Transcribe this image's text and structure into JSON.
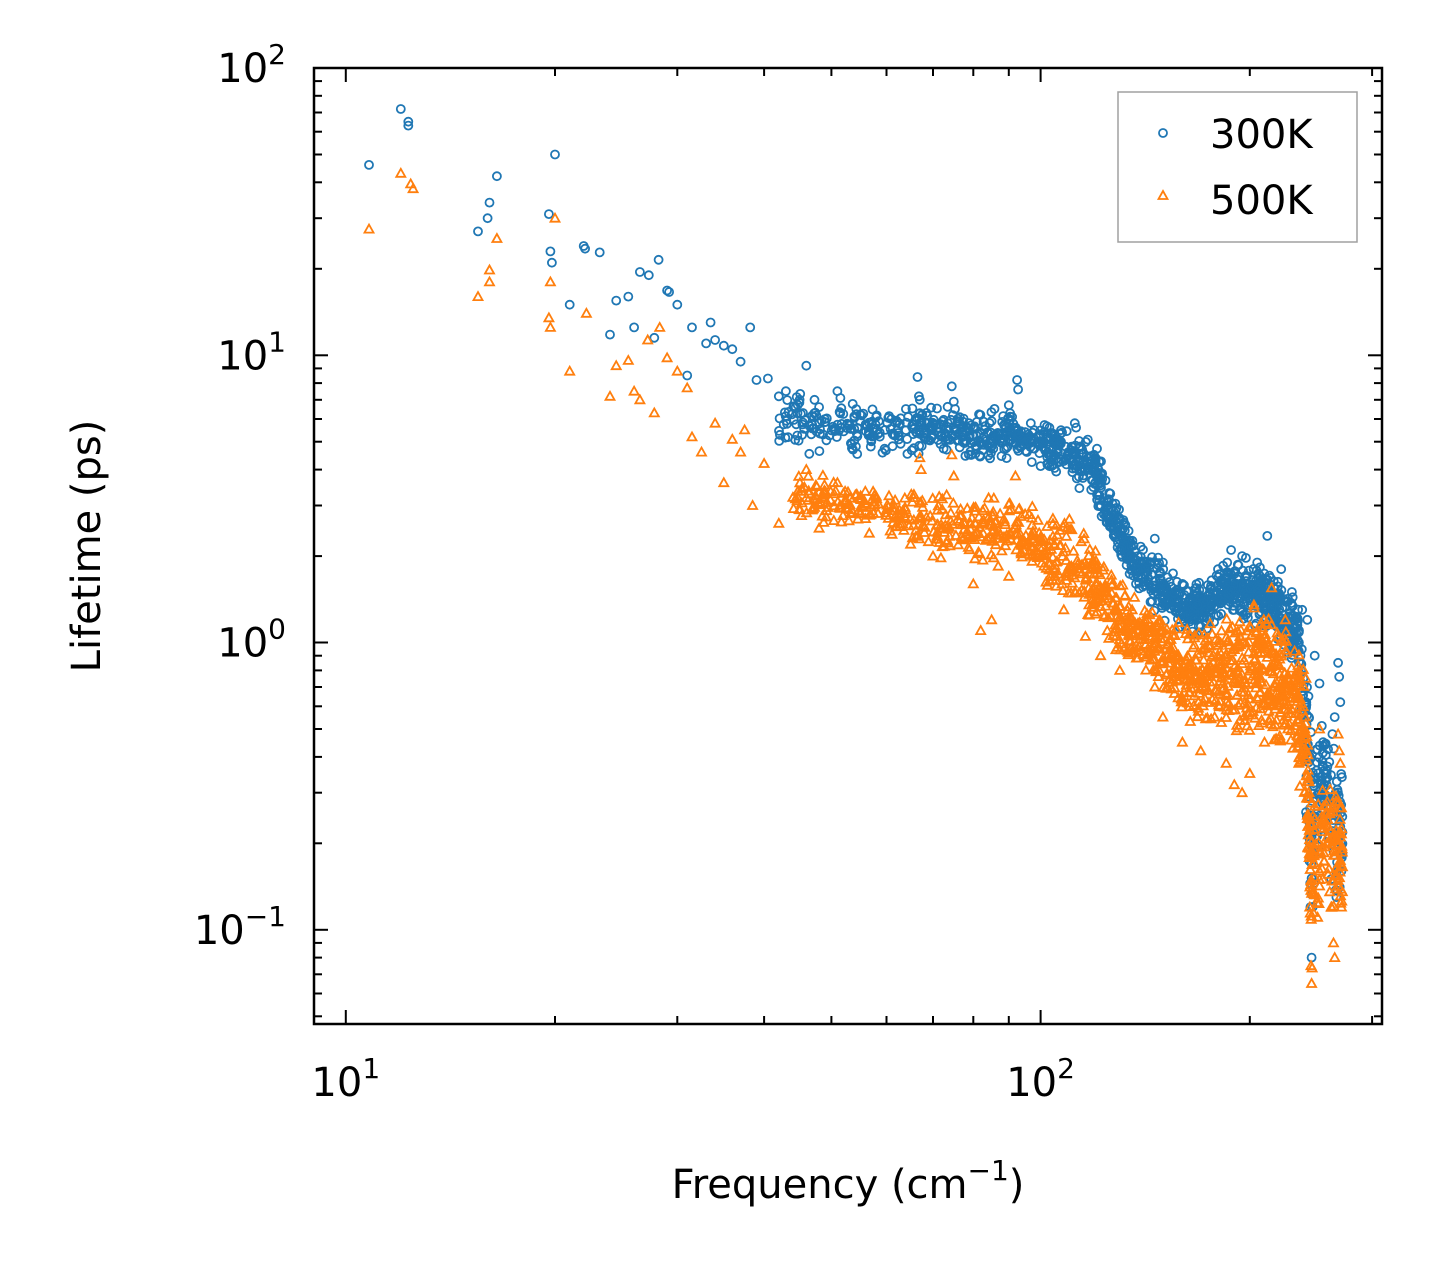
{
  "chart_data": {
    "type": "scatter",
    "title": "",
    "xlabel": "Frequency (cm⁻¹)",
    "xlabel_main": "Frequency (cm",
    "xlabel_sup": "−1",
    "xlabel_close": ")",
    "ylabel": "Lifetime (ps)",
    "xscale": "log",
    "yscale": "log",
    "xlim": [
      9,
      310
    ],
    "ylim": [
      0.047,
      100
    ],
    "x_major_ticks": [
      {
        "value": 10,
        "base": "10",
        "exp": "1"
      },
      {
        "value": 100,
        "base": "10",
        "exp": "2"
      }
    ],
    "y_major_ticks": [
      {
        "value": 0.1,
        "base": "10",
        "exp": "−1"
      },
      {
        "value": 1,
        "base": "10",
        "exp": "0"
      },
      {
        "value": 10,
        "base": "10",
        "exp": "1"
      },
      {
        "value": 100,
        "base": "10",
        "exp": "2"
      }
    ],
    "legend_location": "top-right",
    "colors": {
      "300K": "#1f77b4",
      "500K": "#ff7f0e",
      "axes": "#000000",
      "legend_frame": "#a0a0a0"
    },
    "series": [
      {
        "name": "300K",
        "marker": "circle",
        "color": "#1f77b4",
        "points": [
          [
            10.8,
            46
          ],
          [
            12.0,
            72
          ],
          [
            12.3,
            65
          ],
          [
            12.3,
            63
          ],
          [
            15.5,
            27
          ],
          [
            16.0,
            30
          ],
          [
            16.1,
            34
          ],
          [
            16.5,
            42
          ],
          [
            19.6,
            31
          ],
          [
            19.7,
            23
          ],
          [
            19.8,
            21
          ],
          [
            20.0,
            50
          ],
          [
            21.0,
            15
          ],
          [
            22.0,
            24
          ],
          [
            22.1,
            23.5
          ],
          [
            23.2,
            22.8
          ],
          [
            24.0,
            11.8
          ],
          [
            24.5,
            15.5
          ],
          [
            25.5,
            16
          ],
          [
            26.0,
            12.5
          ],
          [
            26.5,
            19.5
          ],
          [
            27.3,
            19
          ],
          [
            27.8,
            11.5
          ],
          [
            28.2,
            21.5
          ],
          [
            29.0,
            16.8
          ],
          [
            29.2,
            16.6
          ],
          [
            30.0,
            15
          ],
          [
            31.0,
            8.5
          ],
          [
            31.5,
            12.5
          ],
          [
            33.0,
            11
          ],
          [
            33.5,
            13
          ],
          [
            34.0,
            11.3
          ],
          [
            35.0,
            10.8
          ],
          [
            36.0,
            10.5
          ],
          [
            37.0,
            9.5
          ],
          [
            38.2,
            12.5
          ],
          [
            39.0,
            8.2
          ],
          [
            40.5,
            8.3
          ],
          [
            42.0,
            7.2
          ],
          [
            43.0,
            7.5
          ],
          [
            45.0,
            7.0
          ],
          [
            46.0,
            9.2
          ],
          [
            48.0,
            6.6
          ],
          [
            51.0,
            7.5
          ],
          [
            51.5,
            7.1
          ],
          [
            55.0,
            5.9
          ],
          [
            58.0,
            6.1
          ],
          [
            61.0,
            6.0
          ],
          [
            64.0,
            6.5
          ],
          [
            66.5,
            8.4
          ],
          [
            66.8,
            7.2
          ],
          [
            67.0,
            7.0
          ],
          [
            70.0,
            5.6
          ],
          [
            74.5,
            7.8
          ],
          [
            75.0,
            6.9
          ],
          [
            75.3,
            6.5
          ],
          [
            80.0,
            5.6
          ],
          [
            85.0,
            5.9
          ],
          [
            90.0,
            6.7
          ],
          [
            91.0,
            6.1
          ],
          [
            92.5,
            8.2
          ],
          [
            92.8,
            7.6
          ],
          [
            95.0,
            5.4
          ],
          [
            100.0,
            5.3
          ],
          [
            103.0,
            5.1
          ],
          [
            107.0,
            5.0
          ],
          [
            112.0,
            5.8
          ],
          [
            112.5,
            5.6
          ],
          [
            120.0,
            4.3
          ],
          [
            126.0,
            3.3
          ],
          [
            130.0,
            2.1
          ],
          [
            138.0,
            1.8
          ],
          [
            146.0,
            2.3
          ],
          [
            150.0,
            1.9
          ],
          [
            160.0,
            1.6
          ],
          [
            170.0,
            1.45
          ],
          [
            180.0,
            1.8
          ],
          [
            188.0,
            2.1
          ],
          [
            195.0,
            2.0
          ],
          [
            205.0,
            1.9
          ],
          [
            212.0,
            2.35
          ],
          [
            222.0,
            1.8
          ],
          [
            230.0,
            1.5
          ],
          [
            238.0,
            1.3
          ],
          [
            242.0,
            1.2
          ],
          [
            243.0,
            0.65
          ],
          [
            244.0,
            0.2
          ],
          [
            244.5,
            0.12
          ],
          [
            245.5,
            0.08
          ],
          [
            248.0,
            0.9
          ],
          [
            252.0,
            0.72
          ],
          [
            255.0,
            0.45
          ],
          [
            258.0,
            0.35
          ],
          [
            260.0,
            0.21
          ],
          [
            262.0,
            0.15
          ],
          [
            263.0,
            0.48
          ],
          [
            265.0,
            0.55
          ],
          [
            266.5,
            0.13
          ],
          [
            268.0,
            0.85
          ],
          [
            269.0,
            0.76
          ],
          [
            270.0,
            0.62
          ],
          [
            270.5,
            0.2
          ],
          [
            271.0,
            0.16
          ]
        ],
        "bands": [
          [
            42,
            4.6,
            7.6,
            60
          ],
          [
            50,
            4.3,
            7.2,
            70
          ],
          [
            60,
            4.3,
            7.0,
            70
          ],
          [
            70,
            4.5,
            6.8,
            70
          ],
          [
            80,
            4.2,
            6.4,
            70
          ],
          [
            90,
            4.3,
            6.8,
            70
          ],
          [
            100,
            4.0,
            6.0,
            70
          ],
          [
            110,
            3.7,
            5.7,
            70
          ],
          [
            120,
            3.0,
            4.9,
            70
          ],
          [
            128,
            2.0,
            3.4,
            60
          ],
          [
            135,
            1.6,
            2.4,
            60
          ],
          [
            145,
            1.25,
            2.1,
            60
          ],
          [
            155,
            1.15,
            1.8,
            60
          ],
          [
            165,
            1.05,
            1.65,
            60
          ],
          [
            175,
            1.1,
            1.7,
            60
          ],
          [
            185,
            1.2,
            2.0,
            60
          ],
          [
            195,
            1.2,
            2.0,
            60
          ],
          [
            205,
            1.1,
            1.95,
            60
          ],
          [
            215,
            1.0,
            1.8,
            60
          ],
          [
            225,
            0.9,
            1.6,
            60
          ],
          [
            235,
            0.8,
            1.4,
            60
          ],
          [
            246,
            0.09,
            0.6,
            50
          ],
          [
            256,
            0.25,
            0.5,
            30
          ],
          [
            265,
            0.12,
            0.5,
            40
          ],
          [
            272,
            0.12,
            0.45,
            30
          ]
        ]
      },
      {
        "name": "500K",
        "marker": "triangle",
        "color": "#ff7f0e",
        "points": [
          [
            10.8,
            27.5
          ],
          [
            12.0,
            43
          ],
          [
            12.4,
            39.5
          ],
          [
            12.5,
            38
          ],
          [
            15.5,
            16
          ],
          [
            16.1,
            18
          ],
          [
            16.1,
            19.8
          ],
          [
            16.5,
            25.5
          ],
          [
            19.6,
            13.5
          ],
          [
            19.7,
            12.5
          ],
          [
            19.7,
            18
          ],
          [
            20.0,
            30
          ],
          [
            21.0,
            8.8
          ],
          [
            22.2,
            14
          ],
          [
            24.0,
            7.2
          ],
          [
            24.5,
            9.2
          ],
          [
            25.5,
            9.6
          ],
          [
            26.0,
            7.5
          ],
          [
            26.5,
            7.0
          ],
          [
            27.2,
            11.3
          ],
          [
            27.8,
            6.3
          ],
          [
            28.3,
            12.5
          ],
          [
            29.0,
            9.8
          ],
          [
            30.0,
            8.8
          ],
          [
            31.0,
            7.7
          ],
          [
            31.5,
            5.2
          ],
          [
            32.5,
            4.6
          ],
          [
            34.0,
            5.8
          ],
          [
            35.0,
            3.6
          ],
          [
            36.0,
            5.1
          ],
          [
            37.0,
            4.6
          ],
          [
            37.5,
            5.5
          ],
          [
            38.5,
            3.0
          ],
          [
            40.0,
            4.2
          ],
          [
            42.0,
            2.6
          ],
          [
            44.0,
            3.2
          ],
          [
            46.0,
            4.0
          ],
          [
            48.0,
            2.5
          ],
          [
            51.0,
            3.6
          ],
          [
            55.0,
            2.8
          ],
          [
            60.0,
            2.9
          ],
          [
            65.0,
            2.2
          ],
          [
            67.0,
            4.4
          ],
          [
            67.3,
            4.0
          ],
          [
            70.0,
            2.0
          ],
          [
            74.5,
            4.5
          ],
          [
            75.0,
            3.8
          ],
          [
            80.0,
            1.6
          ],
          [
            82.0,
            1.1
          ],
          [
            85.0,
            1.2
          ],
          [
            90.0,
            1.7
          ],
          [
            92.0,
            3.8
          ],
          [
            95.0,
            2.8
          ],
          [
            100.0,
            2.3
          ],
          [
            105.0,
            1.7
          ],
          [
            108.0,
            1.3
          ],
          [
            112.0,
            1.5
          ],
          [
            116.0,
            1.05
          ],
          [
            122.0,
            0.9
          ],
          [
            130.0,
            0.8
          ],
          [
            135.0,
            1.2
          ],
          [
            140.0,
            1.05
          ],
          [
            146.0,
            0.7
          ],
          [
            150.0,
            0.55
          ],
          [
            160.0,
            0.45
          ],
          [
            170.0,
            0.42
          ],
          [
            178.0,
            0.55
          ],
          [
            185.0,
            0.38
          ],
          [
            190.0,
            0.32
          ],
          [
            195.0,
            0.3
          ],
          [
            200.0,
            0.35
          ],
          [
            210.0,
            0.45
          ],
          [
            215.0,
            1.55
          ],
          [
            225.0,
            1.2
          ],
          [
            235.0,
            0.8
          ],
          [
            240.0,
            0.5
          ],
          [
            243.0,
            0.3
          ],
          [
            244.0,
            0.12
          ],
          [
            245.0,
            0.075
          ],
          [
            245.5,
            0.065
          ],
          [
            252.0,
            0.5
          ],
          [
            258.0,
            0.2
          ],
          [
            262.0,
            0.12
          ],
          [
            264.0,
            0.09
          ],
          [
            265.0,
            0.08
          ],
          [
            266.0,
            0.28
          ],
          [
            268.0,
            0.48
          ],
          [
            269.0,
            0.42
          ],
          [
            270.0,
            0.38
          ],
          [
            271.0,
            0.12
          ]
        ],
        "bands": [
          [
            44,
            2.7,
            4.0,
            50
          ],
          [
            50,
            2.4,
            3.8,
            60
          ],
          [
            60,
            2.3,
            3.6,
            60
          ],
          [
            70,
            2.0,
            3.4,
            60
          ],
          [
            80,
            1.8,
            3.3,
            60
          ],
          [
            90,
            1.8,
            3.3,
            60
          ],
          [
            100,
            1.6,
            3.0,
            60
          ],
          [
            110,
            1.3,
            2.8,
            60
          ],
          [
            120,
            1.1,
            2.3,
            60
          ],
          [
            130,
            0.85,
            1.7,
            60
          ],
          [
            140,
            0.8,
            1.4,
            60
          ],
          [
            150,
            0.65,
            1.3,
            60
          ],
          [
            160,
            0.55,
            1.2,
            60
          ],
          [
            170,
            0.5,
            1.2,
            60
          ],
          [
            180,
            0.5,
            1.3,
            60
          ],
          [
            190,
            0.45,
            1.3,
            60
          ],
          [
            200,
            0.45,
            1.4,
            60
          ],
          [
            210,
            0.45,
            1.4,
            60
          ],
          [
            220,
            0.4,
            1.3,
            60
          ],
          [
            230,
            0.4,
            1.1,
            60
          ],
          [
            240,
            0.25,
            0.9,
            60
          ],
          [
            246,
            0.07,
            0.3,
            40
          ],
          [
            256,
            0.15,
            0.32,
            30
          ],
          [
            265,
            0.09,
            0.4,
            40
          ],
          [
            272,
            0.09,
            0.3,
            30
          ]
        ]
      }
    ]
  }
}
